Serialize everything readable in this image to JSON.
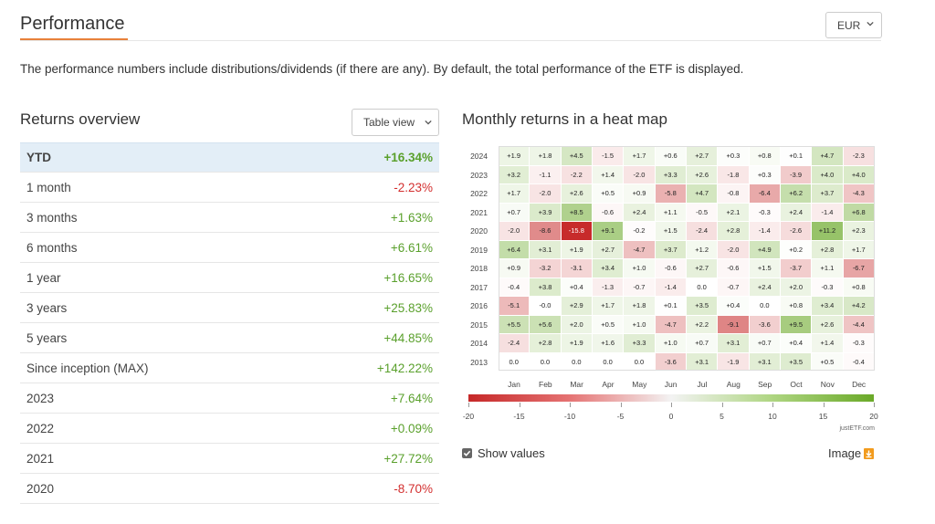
{
  "header": {
    "title": "Performance",
    "currency": "EUR"
  },
  "intro_text": "The performance numbers include distributions/dividends (if there are any). By default, the total performance of the ETF is displayed.",
  "returns": {
    "title": "Returns overview",
    "view_label": "Table view",
    "rows": [
      {
        "label": "YTD",
        "value": "+16.34%",
        "sign": "pos"
      },
      {
        "label": "1 month",
        "value": "-2.23%",
        "sign": "neg"
      },
      {
        "label": "3 months",
        "value": "+1.63%",
        "sign": "pos"
      },
      {
        "label": "6 months",
        "value": "+6.61%",
        "sign": "pos"
      },
      {
        "label": "1 year",
        "value": "+16.65%",
        "sign": "pos"
      },
      {
        "label": "3 years",
        "value": "+25.83%",
        "sign": "pos"
      },
      {
        "label": "5 years",
        "value": "+44.85%",
        "sign": "pos"
      },
      {
        "label": "Since inception (MAX)",
        "value": "+142.22%",
        "sign": "pos"
      },
      {
        "label": "2023",
        "value": "+7.64%",
        "sign": "pos"
      },
      {
        "label": "2022",
        "value": "+0.09%",
        "sign": "pos"
      },
      {
        "label": "2021",
        "value": "+27.72%",
        "sign": "pos"
      },
      {
        "label": "2020",
        "value": "-8.70%",
        "sign": "neg"
      }
    ]
  },
  "heatmap": {
    "title": "Monthly returns in a heat map",
    "months": [
      "Jan",
      "Feb",
      "Mar",
      "Apr",
      "May",
      "Jun",
      "Jul",
      "Aug",
      "Sep",
      "Oct",
      "Nov",
      "Dec"
    ],
    "rows": [
      {
        "year": "2024",
        "values": [
          1.9,
          1.8,
          4.5,
          -1.5,
          1.7,
          0.6,
          2.7,
          0.3,
          0.8,
          0.1,
          4.7,
          -2.3
        ]
      },
      {
        "year": "2023",
        "values": [
          3.2,
          -1.1,
          -2.2,
          1.4,
          -2.0,
          3.3,
          2.6,
          -1.8,
          0.3,
          -3.9,
          4.0,
          4.0
        ]
      },
      {
        "year": "2022",
        "values": [
          1.7,
          -2.0,
          2.6,
          0.5,
          0.9,
          -5.8,
          4.7,
          -0.8,
          -6.4,
          6.2,
          3.7,
          -4.3
        ]
      },
      {
        "year": "2021",
        "values": [
          0.7,
          3.9,
          8.5,
          -0.6,
          2.4,
          1.1,
          -0.5,
          2.1,
          -0.3,
          2.4,
          -1.4,
          6.8
        ]
      },
      {
        "year": "2020",
        "values": [
          -2.0,
          -8.6,
          -15.8,
          9.1,
          -0.2,
          1.5,
          -2.4,
          2.8,
          -1.4,
          -2.6,
          11.2,
          2.3
        ]
      },
      {
        "year": "2019",
        "values": [
          6.4,
          3.1,
          1.9,
          2.7,
          -4.7,
          3.7,
          1.2,
          -2.0,
          4.9,
          0.2,
          2.8,
          1.7
        ]
      },
      {
        "year": "2018",
        "values": [
          0.9,
          -3.2,
          -3.1,
          3.4,
          1.0,
          -0.6,
          2.7,
          -0.6,
          1.5,
          -3.7,
          1.1,
          -6.7
        ]
      },
      {
        "year": "2017",
        "values": [
          -0.4,
          3.8,
          0.4,
          -1.3,
          -0.7,
          -1.4,
          0.0,
          -0.7,
          2.4,
          2.0,
          -0.3,
          0.8
        ]
      },
      {
        "year": "2016",
        "values": [
          -5.1,
          -0.0,
          2.9,
          1.7,
          1.8,
          0.1,
          3.5,
          0.4,
          0.0,
          0.8,
          3.4,
          4.2
        ]
      },
      {
        "year": "2015",
        "values": [
          5.5,
          5.6,
          2.0,
          0.5,
          1.0,
          -4.7,
          2.2,
          -9.1,
          -3.6,
          9.5,
          2.6,
          -4.4
        ]
      },
      {
        "year": "2014",
        "values": [
          -2.4,
          2.8,
          1.9,
          1.6,
          3.3,
          1.0,
          0.7,
          3.1,
          0.7,
          0.4,
          1.4,
          -0.3
        ]
      },
      {
        "year": "2013",
        "values": [
          0.0,
          0.0,
          0.0,
          0.0,
          0.0,
          -3.6,
          3.1,
          -1.9,
          3.1,
          3.5,
          0.5,
          -0.4
        ]
      }
    ],
    "scale_ticks": [
      "-20",
      "-15",
      "-10",
      "-5",
      "0",
      "5",
      "10",
      "15",
      "20"
    ],
    "credit": "justETF.com",
    "colors": {
      "neg": "#c62828",
      "pos": "#6aa928",
      "neutral": "#ffffff"
    }
  },
  "controls": {
    "show_values_label": "Show values",
    "image_label": "Image"
  }
}
